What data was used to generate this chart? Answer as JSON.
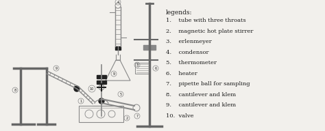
{
  "background_color": "#f2f0ec",
  "legend_title": "legends:",
  "legend_items": [
    "1.    tube with three throats",
    "2.    magnetic hot plate stirrer",
    "3.    erlenmeyer",
    "4.    condensor",
    "5.    thermometer",
    "6.    heater",
    "7.    pipette ball for sampling",
    "8.    cantilever and klem",
    "9.    cantilever and klem",
    "10.  valve"
  ],
  "text_color": "#1a1a1a",
  "line_color": "#888888",
  "dark_color": "#222222",
  "mid_color": "#666666"
}
